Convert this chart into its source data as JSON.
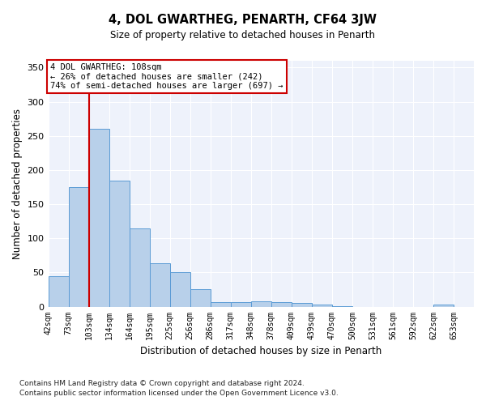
{
  "title": "4, DOL GWARTHEG, PENARTH, CF64 3JW",
  "subtitle": "Size of property relative to detached houses in Penarth",
  "xlabel": "Distribution of detached houses by size in Penarth",
  "ylabel": "Number of detached properties",
  "footnote1": "Contains HM Land Registry data © Crown copyright and database right 2024.",
  "footnote2": "Contains public sector information licensed under the Open Government Licence v3.0.",
  "annotation_line1": "4 DOL GWARTHEG: 108sqm",
  "annotation_line2": "← 26% of detached houses are smaller (242)",
  "annotation_line3": "74% of semi-detached houses are larger (697) →",
  "bar_color": "#b8d0ea",
  "bar_edge_color": "#5b9bd5",
  "vline_color": "#cc0000",
  "annotation_box_edge": "#cc0000",
  "bg_color": "#eef2fb",
  "categories": [
    "42sqm",
    "73sqm",
    "103sqm",
    "134sqm",
    "164sqm",
    "195sqm",
    "225sqm",
    "256sqm",
    "286sqm",
    "317sqm",
    "348sqm",
    "378sqm",
    "409sqm",
    "439sqm",
    "470sqm",
    "500sqm",
    "531sqm",
    "561sqm",
    "592sqm",
    "622sqm",
    "653sqm"
  ],
  "values": [
    44,
    175,
    260,
    184,
    114,
    64,
    51,
    25,
    7,
    6,
    8,
    7,
    5,
    3,
    1,
    0,
    0,
    0,
    0,
    3,
    0
  ],
  "vline_bin": 2,
  "ylim": [
    0,
    360
  ],
  "yticks": [
    0,
    50,
    100,
    150,
    200,
    250,
    300,
    350
  ]
}
